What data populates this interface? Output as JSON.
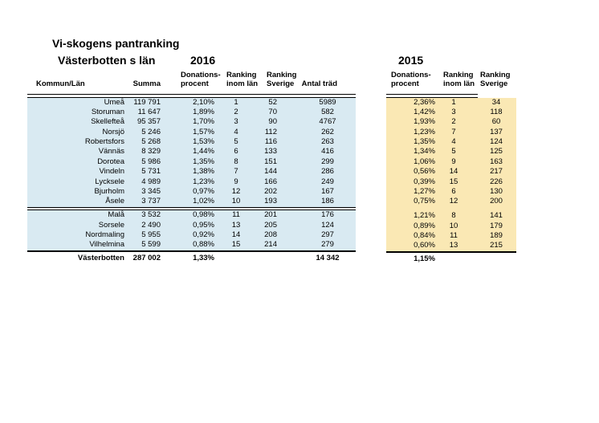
{
  "page": {
    "title": "Vi-skogens pantranking",
    "region_label": "Västerbotten s län",
    "year_left": "2016",
    "year_right": "2015"
  },
  "left_table": {
    "headers": {
      "kommun": "Kommun/Län",
      "summa": "Summa",
      "donations_l1": "Donations-",
      "donations_l2": "procent",
      "rank_lan_l1": "Ranking",
      "rank_lan_l2": "inom län",
      "rank_sv_l1": "Ranking",
      "rank_sv_l2": "Sverige",
      "antal": "Antal träd"
    }
  },
  "right_table": {
    "headers": {
      "donations_l1": "Donations-",
      "donations_l2": "procent",
      "rank_lan_l1": "Ranking",
      "rank_lan_l2": "inom län",
      "rank_sv_l1": "Ranking",
      "rank_sv_l2": "Sverige"
    }
  },
  "section_break_index": 11,
  "rows": [
    {
      "kommun": "Umeå",
      "summa": "119 791",
      "procent": "2,10%",
      "rank_lan": "1",
      "rank_sverige": "52",
      "antal": "5989",
      "procent_2015": "2,36%",
      "rank_lan_2015": "1",
      "rank_sverige_2015": "34"
    },
    {
      "kommun": "Storuman",
      "summa": "11 647",
      "procent": "1,89%",
      "rank_lan": "2",
      "rank_sverige": "70",
      "antal": "582",
      "procent_2015": "1,42%",
      "rank_lan_2015": "3",
      "rank_sverige_2015": "118"
    },
    {
      "kommun": "Skellefteå",
      "summa": "95 357",
      "procent": "1,70%",
      "rank_lan": "3",
      "rank_sverige": "90",
      "antal": "4767",
      "procent_2015": "1,93%",
      "rank_lan_2015": "2",
      "rank_sverige_2015": "60"
    },
    {
      "kommun": "Norsjö",
      "summa": "5 246",
      "procent": "1,57%",
      "rank_lan": "4",
      "rank_sverige": "112",
      "antal": "262",
      "procent_2015": "1,23%",
      "rank_lan_2015": "7",
      "rank_sverige_2015": "137"
    },
    {
      "kommun": "Robertsfors",
      "summa": "5 268",
      "procent": "1,53%",
      "rank_lan": "5",
      "rank_sverige": "116",
      "antal": "263",
      "procent_2015": "1,35%",
      "rank_lan_2015": "4",
      "rank_sverige_2015": "124"
    },
    {
      "kommun": "Vännäs",
      "summa": "8 329",
      "procent": "1,44%",
      "rank_lan": "6",
      "rank_sverige": "133",
      "antal": "416",
      "procent_2015": "1,34%",
      "rank_lan_2015": "5",
      "rank_sverige_2015": "125"
    },
    {
      "kommun": "Dorotea",
      "summa": "5 986",
      "procent": "1,35%",
      "rank_lan": "8",
      "rank_sverige": "151",
      "antal": "299",
      "procent_2015": "1,06%",
      "rank_lan_2015": "9",
      "rank_sverige_2015": "163"
    },
    {
      "kommun": "Vindeln",
      "summa": "5 731",
      "procent": "1,38%",
      "rank_lan": "7",
      "rank_sverige": "144",
      "antal": "286",
      "procent_2015": "0,56%",
      "rank_lan_2015": "14",
      "rank_sverige_2015": "217"
    },
    {
      "kommun": "Lycksele",
      "summa": "4 989",
      "procent": "1,23%",
      "rank_lan": "9",
      "rank_sverige": "166",
      "antal": "249",
      "procent_2015": "0,39%",
      "rank_lan_2015": "15",
      "rank_sverige_2015": "226"
    },
    {
      "kommun": "Bjurholm",
      "summa": "3 345",
      "procent": "0,97%",
      "rank_lan": "12",
      "rank_sverige": "202",
      "antal": "167",
      "procent_2015": "1,27%",
      "rank_lan_2015": "6",
      "rank_sverige_2015": "130"
    },
    {
      "kommun": "Åsele",
      "summa": "3 737",
      "procent": "1,02%",
      "rank_lan": "10",
      "rank_sverige": "193",
      "antal": "186",
      "procent_2015": "0,75%",
      "rank_lan_2015": "12",
      "rank_sverige_2015": "200"
    },
    {
      "kommun": "Malå",
      "summa": "3 532",
      "procent": "0,98%",
      "rank_lan": "11",
      "rank_sverige": "201",
      "antal": "176",
      "procent_2015": "1,21%",
      "rank_lan_2015": "8",
      "rank_sverige_2015": "141"
    },
    {
      "kommun": "Sorsele",
      "summa": "2 490",
      "procent": "0,95%",
      "rank_lan": "13",
      "rank_sverige": "205",
      "antal": "124",
      "procent_2015": "0,89%",
      "rank_lan_2015": "10",
      "rank_sverige_2015": "179"
    },
    {
      "kommun": "Nordmaling",
      "summa": "5 955",
      "procent": "0,92%",
      "rank_lan": "14",
      "rank_sverige": "208",
      "antal": "297",
      "procent_2015": "0,84%",
      "rank_lan_2015": "11",
      "rank_sverige_2015": "189"
    },
    {
      "kommun": "Vilhelmina",
      "summa": "5 599",
      "procent": "0,88%",
      "rank_lan": "15",
      "rank_sverige": "214",
      "antal": "279",
      "procent_2015": "0,60%",
      "rank_lan_2015": "13",
      "rank_sverige_2015": "215"
    }
  ],
  "total": {
    "label": "Västerbotten",
    "summa": "287 002",
    "procent": "1,33%",
    "antal": "14 342",
    "procent_2015": "1,15%"
  },
  "colors": {
    "left_fill": "#d9eaf2",
    "right_fill": "#fae8b4",
    "line": "#000000"
  }
}
